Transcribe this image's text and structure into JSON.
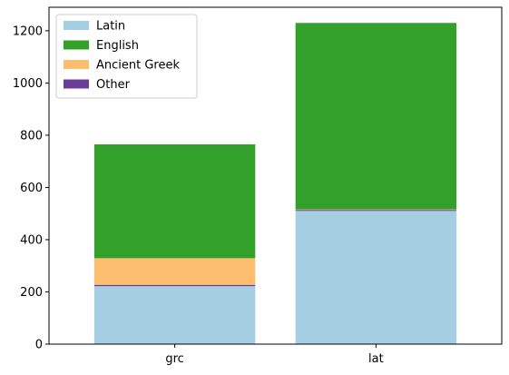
{
  "chart_data": {
    "type": "bar",
    "stacked": true,
    "categories": [
      "grc",
      "lat"
    ],
    "series": [
      {
        "name": "Latin",
        "values": [
          222,
          510
        ],
        "color": "#a6cee3"
      },
      {
        "name": "Other",
        "values": [
          5,
          4
        ],
        "color": "#6a3d9a"
      },
      {
        "name": "Ancient Greek",
        "values": [
          102,
          2
        ],
        "color": "#fdbf6f"
      },
      {
        "name": "English",
        "values": [
          436,
          714
        ],
        "color": "#33a02c"
      }
    ],
    "legend_order": [
      "Latin",
      "English",
      "Ancient Greek",
      "Other"
    ],
    "title": "",
    "xlabel": "",
    "ylabel": "",
    "ylim": [
      0,
      1290
    ],
    "yticks": [
      0,
      200,
      400,
      600,
      800,
      1000,
      1200
    ],
    "grid": false,
    "legend_position": "top-left"
  }
}
